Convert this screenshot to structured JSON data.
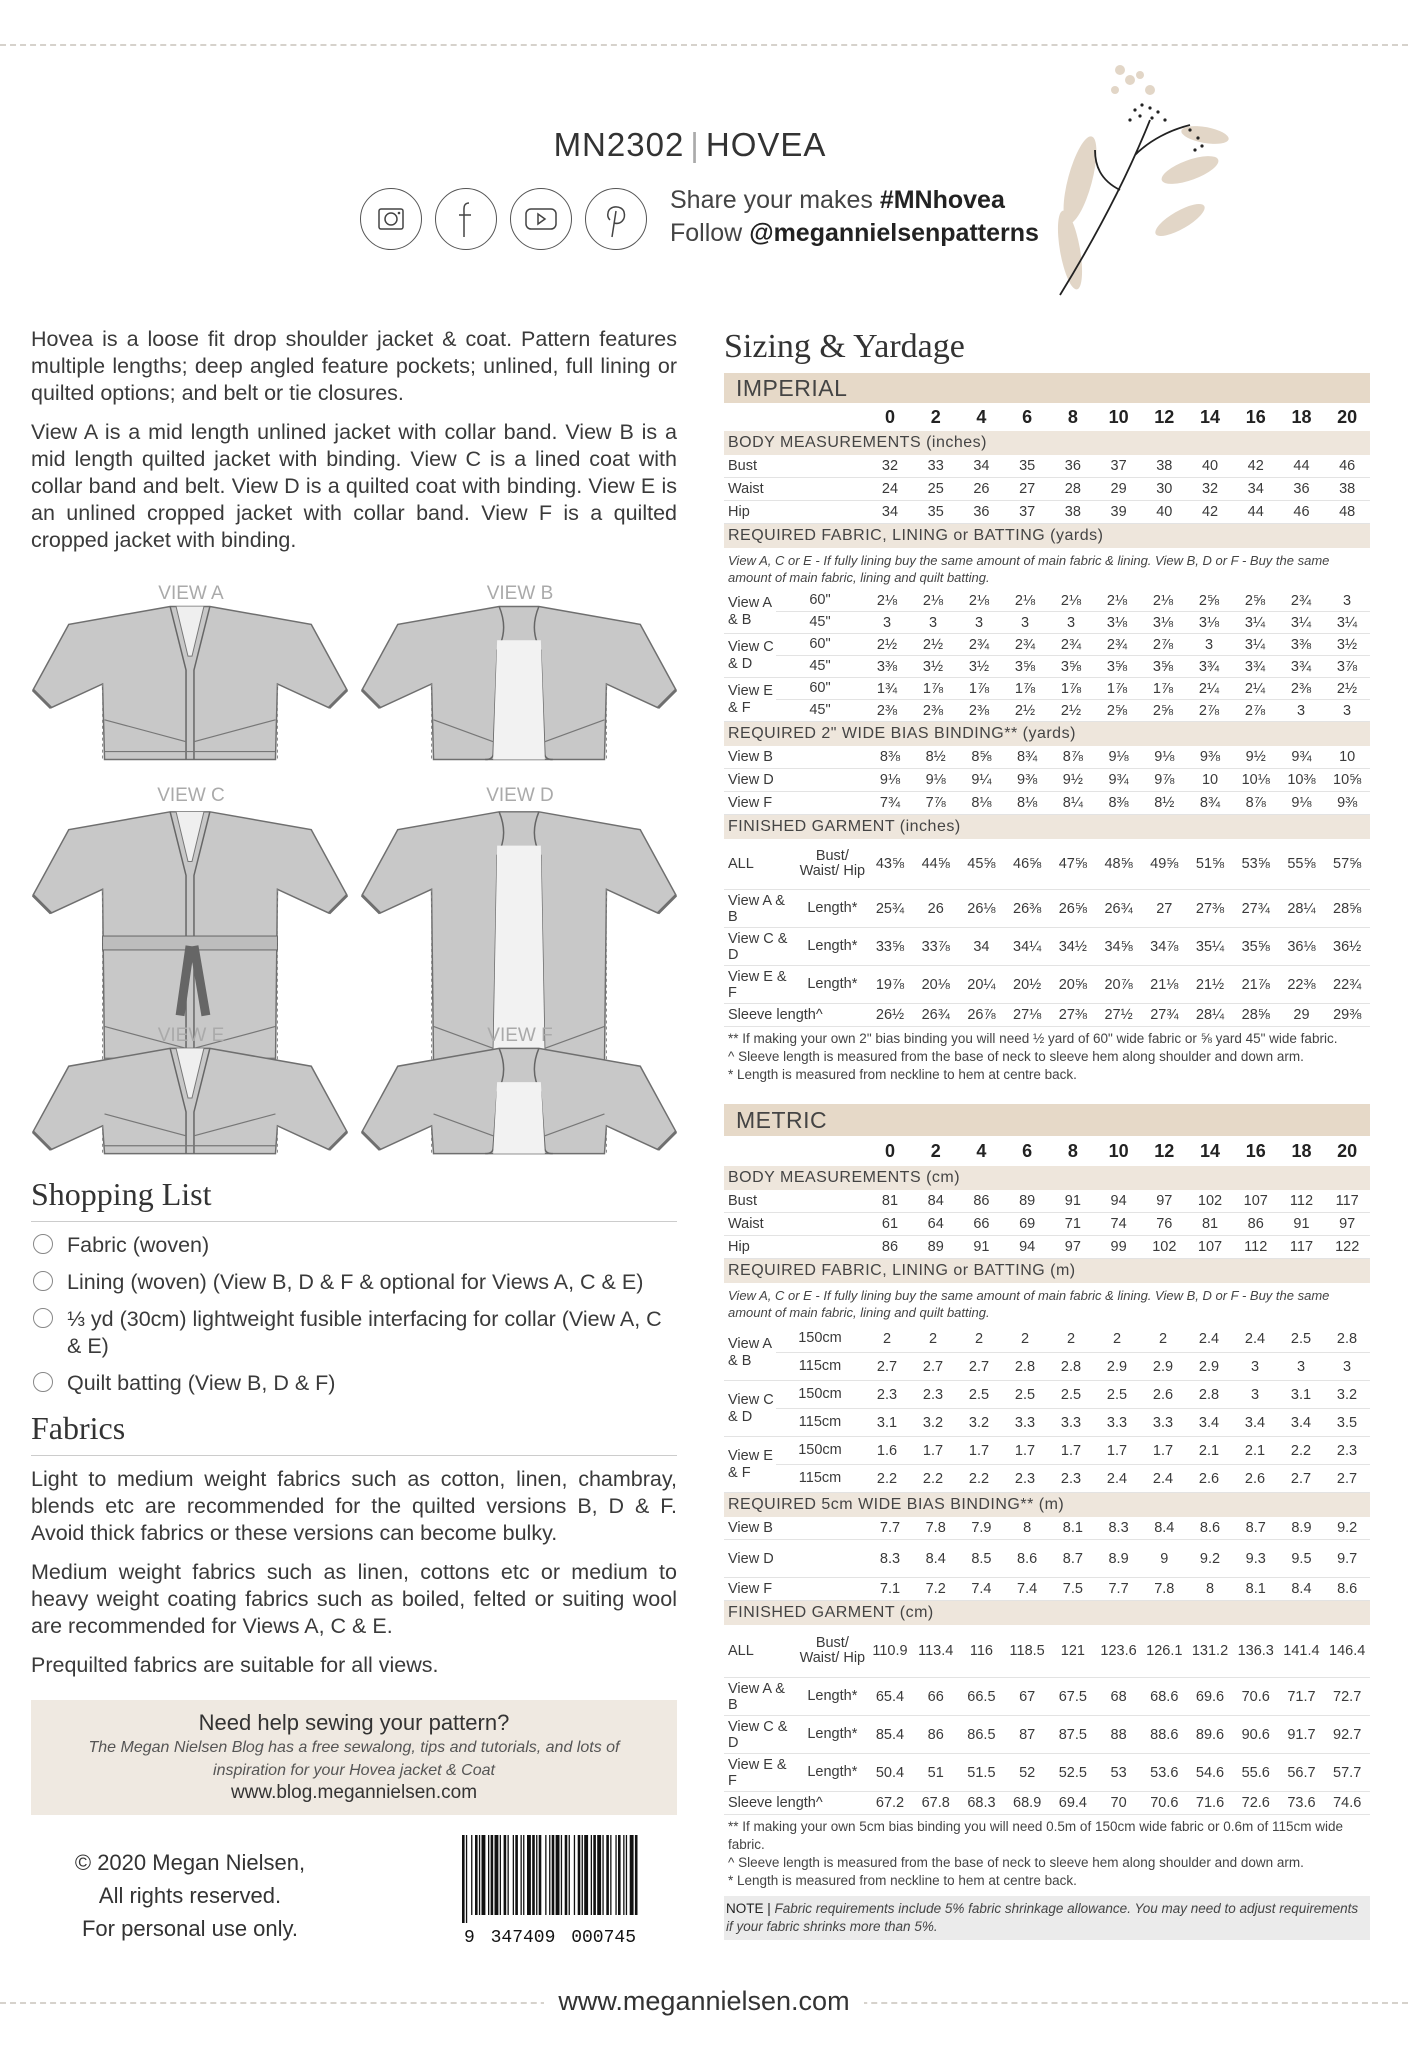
{
  "header": {
    "code": "MN2302",
    "name": "HOVEA",
    "share_prefix": "Share your makes ",
    "hashtag": "#MNhovea",
    "follow_prefix": "Follow ",
    "handle": "@megannielsenpatterns",
    "social_icons": [
      "instagram-icon",
      "facebook-icon",
      "youtube-icon",
      "pinterest-icon"
    ]
  },
  "intro": [
    "Hovea is a loose fit drop shoulder jacket & coat. Pattern features multiple lengths; deep angled feature pockets; unlined, full lining or quilted options; and belt or tie closures.",
    "View A is a mid length unlined jacket with collar band. View B is a mid length quilted jacket with binding. View C is a lined coat with collar band and belt. View D is a quilted coat with binding. View E is an unlined cropped jacket with collar band. View F is a quilted cropped jacket with binding."
  ],
  "views": [
    "VIEW A",
    "VIEW B",
    "VIEW C",
    "VIEW D",
    "VIEW E",
    "VIEW F"
  ],
  "shopping": {
    "title": "Shopping List",
    "items": [
      "Fabric (woven)",
      "Lining (woven) (View B, D & F & optional for Views A, C & E)",
      "⅓ yd (30cm) lightweight fusible interfacing  for collar (View A, C & E)",
      "Quilt batting (View B, D & F)"
    ]
  },
  "fabrics": {
    "title": "Fabrics",
    "paragraphs": [
      "Light to medium weight fabrics such as cotton, linen, chambray, blends etc are recommended for the quilted versions B, D & F. Avoid thick fabrics or these versions can become bulky.",
      "Medium weight fabrics such as linen, cottons etc or medium to heavy weight coating fabrics such as boiled, felted or suiting wool are recommended for Views A, C & E.",
      "Prequilted fabrics are suitable for all views."
    ]
  },
  "help": {
    "title": "Need help sewing your pattern?",
    "text": "The Megan Nielsen Blog has a free sewalong, tips and tutorials, and lots of inspiration for your Hovea jacket & Coat",
    "url": "www.blog.megannielsen.com"
  },
  "copyright": [
    "© 2020 Megan Nielsen,",
    "All rights reserved.",
    "For personal use only."
  ],
  "barcode": {
    "digits": [
      "9",
      "347409",
      "000745"
    ]
  },
  "footer": {
    "url": "www.megannielsen.com"
  },
  "sizing_title": "Sizing & Yardage",
  "sizes": [
    "0",
    "2",
    "4",
    "6",
    "8",
    "10",
    "12",
    "14",
    "16",
    "18",
    "20"
  ],
  "imperial": {
    "title": "IMPERIAL",
    "sections": [
      {
        "header": "BODY MEASUREMENTS (inches)",
        "rows": [
          {
            "label": "Bust",
            "values": [
              "32",
              "33",
              "34",
              "35",
              "36",
              "37",
              "38",
              "40",
              "42",
              "44",
              "46"
            ]
          },
          {
            "label": "Waist",
            "values": [
              "24",
              "25",
              "26",
              "27",
              "28",
              "29",
              "30",
              "32",
              "34",
              "36",
              "38"
            ]
          },
          {
            "label": "Hip",
            "values": [
              "34",
              "35",
              "36",
              "37",
              "38",
              "39",
              "40",
              "42",
              "44",
              "46",
              "48"
            ]
          }
        ]
      },
      {
        "header": "REQUIRED FABRIC, LINING or BATTING (yards)",
        "note": "View A, C or E - If fully lining buy the same amount of main fabric & lining. View B, D or F - Buy the same amount of main fabric, lining and quilt batting.",
        "groups": [
          {
            "label": "View A & B",
            "rows": [
              {
                "sub": "60\"",
                "values": [
                  "2⅛",
                  "2⅛",
                  "2⅛",
                  "2⅛",
                  "2⅛",
                  "2⅛",
                  "2⅛",
                  "2⅝",
                  "2⅝",
                  "2¾",
                  "3"
                ]
              },
              {
                "sub": "45\"",
                "values": [
                  "3",
                  "3",
                  "3",
                  "3",
                  "3",
                  "3⅛",
                  "3⅛",
                  "3⅛",
                  "3¼",
                  "3¼",
                  "3¼"
                ]
              }
            ]
          },
          {
            "label": "View C & D",
            "rows": [
              {
                "sub": "60\"",
                "values": [
                  "2½",
                  "2½",
                  "2¾",
                  "2¾",
                  "2¾",
                  "2¾",
                  "2⅞",
                  "3",
                  "3¼",
                  "3⅜",
                  "3½"
                ]
              },
              {
                "sub": "45\"",
                "values": [
                  "3⅜",
                  "3½",
                  "3½",
                  "3⅝",
                  "3⅝",
                  "3⅝",
                  "3⅝",
                  "3¾",
                  "3¾",
                  "3¾",
                  "3⅞"
                ]
              }
            ]
          },
          {
            "label": "View E & F",
            "rows": [
              {
                "sub": "60\"",
                "values": [
                  "1¾",
                  "1⅞",
                  "1⅞",
                  "1⅞",
                  "1⅞",
                  "1⅞",
                  "1⅞",
                  "2¼",
                  "2¼",
                  "2⅜",
                  "2½"
                ]
              },
              {
                "sub": "45\"",
                "values": [
                  "2⅜",
                  "2⅜",
                  "2⅜",
                  "2½",
                  "2½",
                  "2⅝",
                  "2⅝",
                  "2⅞",
                  "2⅞",
                  "3",
                  "3"
                ]
              }
            ]
          }
        ]
      },
      {
        "header": "REQUIRED 2\" WIDE BIAS BINDING** (yards)",
        "rows": [
          {
            "label": "View B",
            "values": [
              "8⅜",
              "8½",
              "8⅝",
              "8¾",
              "8⅞",
              "9⅛",
              "9⅛",
              "9⅜",
              "9½",
              "9¾",
              "10"
            ]
          },
          {
            "label": "View D",
            "values": [
              "9⅛",
              "9⅛",
              "9¼",
              "9⅜",
              "9½",
              "9¾",
              "9⅞",
              "10",
              "10⅛",
              "10⅜",
              "10⅝"
            ]
          },
          {
            "label": "View F",
            "values": [
              "7¾",
              "7⅞",
              "8⅛",
              "8⅛",
              "8¼",
              "8⅜",
              "8½",
              "8¾",
              "8⅞",
              "9⅛",
              "9⅜"
            ]
          }
        ]
      },
      {
        "header": "FINISHED GARMENT (inches)",
        "rows": [
          {
            "label": "ALL",
            "sub": "Bust/ Waist/ Hip",
            "tall": true,
            "values": [
              "43⅝",
              "44⅝",
              "45⅝",
              "46⅝",
              "47⅝",
              "48⅝",
              "49⅝",
              "51⅝",
              "53⅝",
              "55⅝",
              "57⅝"
            ]
          },
          {
            "label": "View A & B",
            "sub": "Length*",
            "mid": true,
            "values": [
              "25¾",
              "26",
              "26⅛",
              "26⅜",
              "26⅝",
              "26¾",
              "27",
              "27⅜",
              "27¾",
              "28¼",
              "28⅝"
            ]
          },
          {
            "label": "View C & D",
            "sub": "Length*",
            "mid": true,
            "values": [
              "33⅝",
              "33⅞",
              "34",
              "34¼",
              "34½",
              "34⅝",
              "34⅞",
              "35¼",
              "35⅝",
              "36⅛",
              "36½"
            ]
          },
          {
            "label": "View E & F",
            "sub": "Length*",
            "mid": true,
            "values": [
              "19⅞",
              "20⅛",
              "20¼",
              "20½",
              "20⅝",
              "20⅞",
              "21⅛",
              "21½",
              "21⅞",
              "22⅜",
              "22¾"
            ]
          },
          {
            "label": "Sleeve length^",
            "wide": true,
            "values": [
              "26½",
              "26¾",
              "26⅞",
              "27⅛",
              "27⅜",
              "27½",
              "27¾",
              "28¼",
              "28⅝",
              "29",
              "29⅜"
            ]
          }
        ]
      }
    ],
    "footnotes": [
      "** If making your own 2\" bias binding you will need ½ yard of 60\" wide fabric or ⅝ yard 45\" wide fabric.",
      "^ Sleeve length is measured from the base of neck to sleeve hem along shoulder and down arm.",
      "* Length is measured from neckline to hem at centre back."
    ]
  },
  "metric": {
    "title": "METRIC",
    "sections": [
      {
        "header": "BODY MEASUREMENTS (cm)",
        "rows": [
          {
            "label": "Bust",
            "values": [
              "81",
              "84",
              "86",
              "89",
              "91",
              "94",
              "97",
              "102",
              "107",
              "112",
              "117"
            ]
          },
          {
            "label": "Waist",
            "values": [
              "61",
              "64",
              "66",
              "69",
              "71",
              "74",
              "76",
              "81",
              "86",
              "91",
              "97"
            ]
          },
          {
            "label": "Hip",
            "values": [
              "86",
              "89",
              "91",
              "94",
              "97",
              "99",
              "102",
              "107",
              "112",
              "117",
              "122"
            ]
          }
        ]
      },
      {
        "header": "REQUIRED FABRIC, LINING or BATTING (m)",
        "note": "View A, C or E - If fully lining buy the same amount of main fabric & lining. View B, D or F - Buy the same amount of main fabric, lining and quilt batting.",
        "groups": [
          {
            "label": "View A & B",
            "rows": [
              {
                "sub": "150cm",
                "values": [
                  "2",
                  "2",
                  "2",
                  "2",
                  "2",
                  "2",
                  "2",
                  "2.4",
                  "2.4",
                  "2.5",
                  "2.8"
                ]
              },
              {
                "sub": "115cm",
                "values": [
                  "2.7",
                  "2.7",
                  "2.7",
                  "2.8",
                  "2.8",
                  "2.9",
                  "2.9",
                  "2.9",
                  "3",
                  "3",
                  "3"
                ]
              }
            ]
          },
          {
            "label": "View C & D",
            "rows": [
              {
                "sub": "150cm",
                "values": [
                  "2.3",
                  "2.3",
                  "2.5",
                  "2.5",
                  "2.5",
                  "2.5",
                  "2.6",
                  "2.8",
                  "3",
                  "3.1",
                  "3.2"
                ]
              },
              {
                "sub": "115cm",
                "values": [
                  "3.1",
                  "3.2",
                  "3.2",
                  "3.3",
                  "3.3",
                  "3.3",
                  "3.3",
                  "3.4",
                  "3.4",
                  "3.4",
                  "3.5"
                ]
              }
            ]
          },
          {
            "label": "View E & F",
            "rows": [
              {
                "sub": "150cm",
                "values": [
                  "1.6",
                  "1.7",
                  "1.7",
                  "1.7",
                  "1.7",
                  "1.7",
                  "1.7",
                  "2.1",
                  "2.1",
                  "2.2",
                  "2.3"
                ]
              },
              {
                "sub": "115cm",
                "values": [
                  "2.2",
                  "2.2",
                  "2.2",
                  "2.3",
                  "2.3",
                  "2.4",
                  "2.4",
                  "2.6",
                  "2.6",
                  "2.7",
                  "2.7"
                ]
              }
            ]
          }
        ]
      },
      {
        "header": "REQUIRED 5cm WIDE BIAS BINDING** (m)",
        "rows": [
          {
            "label": "View B",
            "values": [
              "7.7",
              "7.8",
              "7.9",
              "8",
              "8.1",
              "8.3",
              "8.4",
              "8.6",
              "8.7",
              "8.9",
              "9.2"
            ]
          },
          {
            "label": "View D",
            "mid": true,
            "values": [
              "8.3",
              "8.4",
              "8.5",
              "8.6",
              "8.7",
              "8.9",
              "9",
              "9.2",
              "9.3",
              "9.5",
              "9.7"
            ]
          },
          {
            "label": "View F",
            "values": [
              "7.1",
              "7.2",
              "7.4",
              "7.4",
              "7.5",
              "7.7",
              "7.8",
              "8",
              "8.1",
              "8.4",
              "8.6"
            ]
          }
        ]
      },
      {
        "header": "FINISHED GARMENT (cm)",
        "rows": [
          {
            "label": "ALL",
            "sub": "Bust/ Waist/ Hip",
            "tall": true,
            "values": [
              "110.9",
              "113.4",
              "116",
              "118.5",
              "121",
              "123.6",
              "126.1",
              "131.2",
              "136.3",
              "141.4",
              "146.4"
            ]
          },
          {
            "label": "View A & B",
            "sub": "Length*",
            "mid": true,
            "values": [
              "65.4",
              "66",
              "66.5",
              "67",
              "67.5",
              "68",
              "68.6",
              "69.6",
              "70.6",
              "71.7",
              "72.7"
            ]
          },
          {
            "label": "View C & D",
            "sub": "Length*",
            "mid": true,
            "values": [
              "85.4",
              "86",
              "86.5",
              "87",
              "87.5",
              "88",
              "88.6",
              "89.6",
              "90.6",
              "91.7",
              "92.7"
            ]
          },
          {
            "label": "View E & F",
            "sub": "Length*",
            "mid": true,
            "values": [
              "50.4",
              "51",
              "51.5",
              "52",
              "52.5",
              "53",
              "53.6",
              "54.6",
              "55.6",
              "56.7",
              "57.7"
            ]
          },
          {
            "label": "Sleeve length^",
            "wide": true,
            "values": [
              "67.2",
              "67.8",
              "68.3",
              "68.9",
              "69.4",
              "70",
              "70.6",
              "71.6",
              "72.6",
              "73.6",
              "74.6"
            ]
          }
        ]
      }
    ],
    "footnotes": [
      "** If making your own 5cm bias binding you will need 0.5m of 150cm wide fabric or 0.6m of 115cm wide fabric.",
      "^ Sleeve length is measured from the base of neck to sleeve hem along shoulder and down arm.",
      "* Length is measured from neckline to hem at centre back."
    ],
    "note_label": "NOTE | ",
    "note": "Fabric requirements include 5% fabric shrinkage allowance. You may need to adjust requirements if your fabric shrinks more than 5%."
  },
  "colors": {
    "band": "#e6d9c8",
    "section": "#eee6dc",
    "garment": "#c8c8c8"
  }
}
